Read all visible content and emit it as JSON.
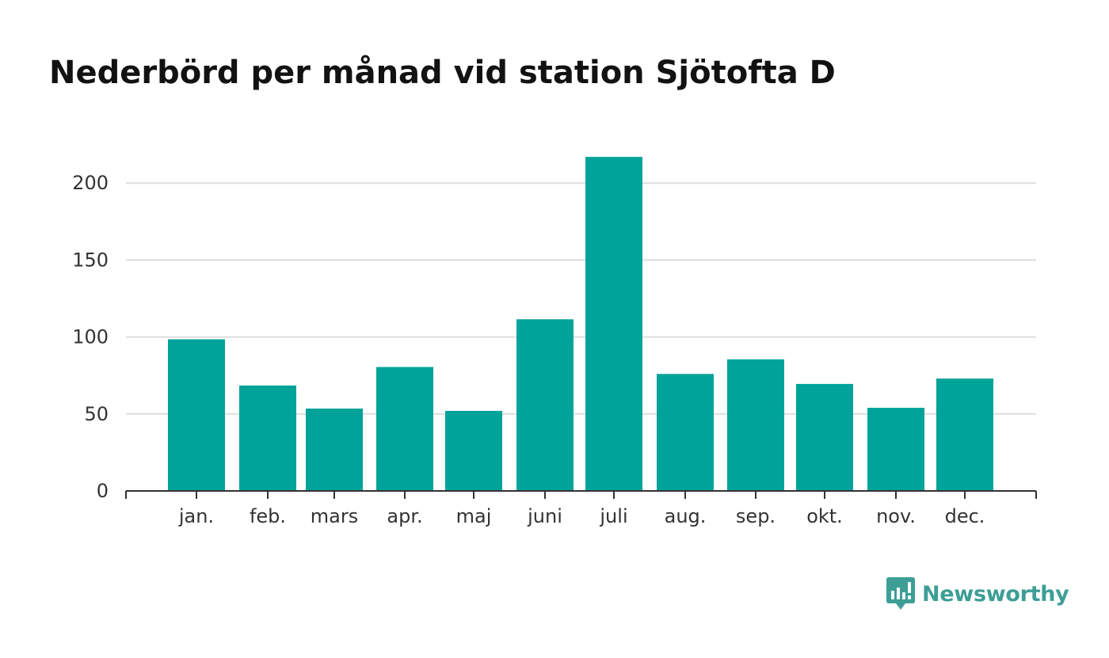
{
  "header": {
    "title": "Nederbörd per månad vid station Sjötofta D"
  },
  "brand": {
    "name": "Newsworthy",
    "icon": "newsworthy-logo-icon",
    "color": "#3d9e96"
  },
  "colors": {
    "bar": "#00a399",
    "grid": "#dddddd",
    "axis": "#333333",
    "text": "#121212"
  },
  "chart_data": {
    "type": "bar",
    "title": "Nederbörd per månad vid station Sjötofta D",
    "xlabel": "",
    "ylabel": "",
    "categories": [
      "jan.",
      "feb.",
      "mars",
      "apr.",
      "maj",
      "juni",
      "juli",
      "aug.",
      "sep.",
      "okt.",
      "nov.",
      "dec."
    ],
    "values": [
      98.5,
      68.5,
      53.5,
      80.5,
      52,
      111.5,
      217,
      76,
      85.5,
      69.5,
      54,
      73
    ],
    "ylim": [
      0,
      230
    ],
    "yticks": [
      0,
      50,
      100,
      150,
      200
    ],
    "ytick_labels": [
      "0",
      "50",
      "100",
      "150",
      "200"
    ],
    "grid": true,
    "legend": "none"
  }
}
